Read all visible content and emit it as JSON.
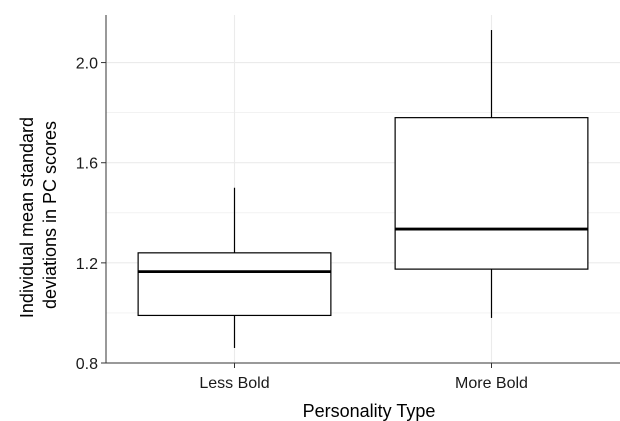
{
  "chart_data": {
    "type": "boxplot",
    "title": "",
    "xlabel": "Personality Type",
    "ylabel_lines": [
      "Individual mean standard",
      "deviations in PC scores"
    ],
    "categories": [
      "Less Bold",
      "More Bold"
    ],
    "boxes": [
      {
        "category": "Less Bold",
        "whisker_low": 0.86,
        "q1": 0.99,
        "median": 1.165,
        "q3": 1.24,
        "whisker_high": 1.5
      },
      {
        "category": "More Bold",
        "whisker_low": 0.98,
        "q1": 1.175,
        "median": 1.335,
        "q3": 1.78,
        "whisker_high": 2.13
      }
    ],
    "yticks": [
      0.8,
      1.2,
      1.6,
      2.0
    ],
    "ytick_labels": [
      "0.8",
      "1.2",
      "1.6",
      "2.0"
    ],
    "ylim": [
      0.8,
      2.19
    ],
    "grid": true,
    "colors": {
      "box_fill": "#ffffff",
      "box_stroke": "#000000",
      "grid": "#ebebeb",
      "axis": "#333333"
    }
  }
}
